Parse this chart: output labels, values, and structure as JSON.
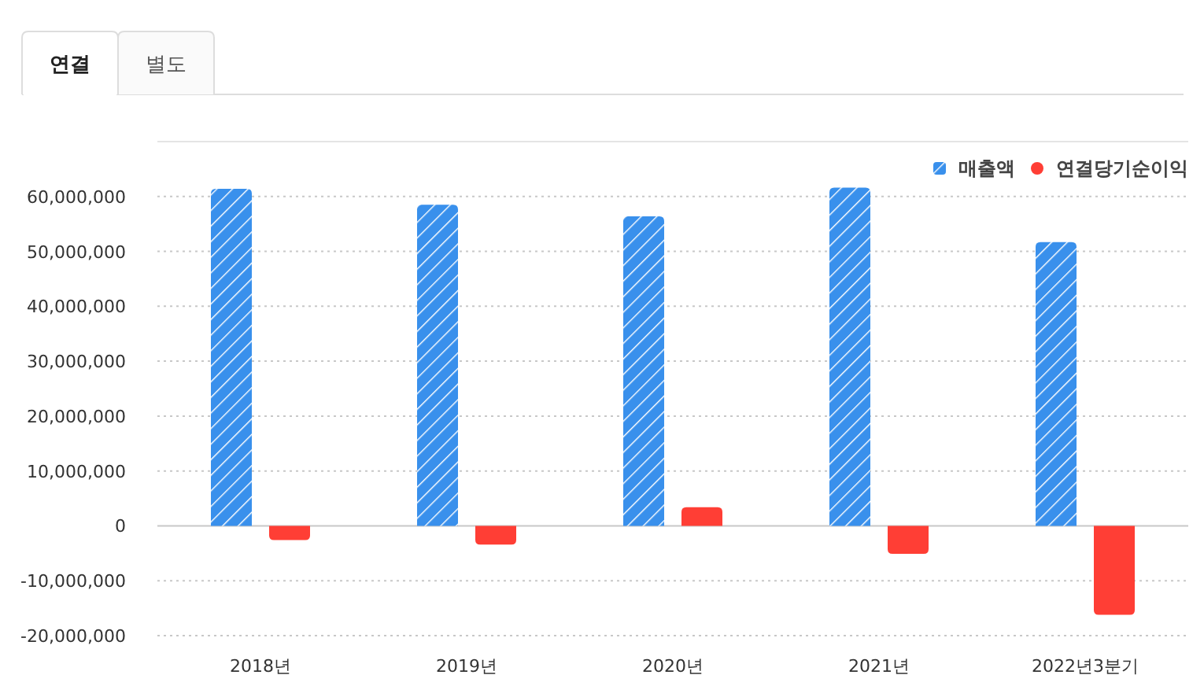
{
  "chart_data": {
    "type": "bar",
    "categories": [
      "2018년",
      "2019년",
      "2020년",
      "2021년",
      "2022년3분기"
    ],
    "series": [
      {
        "name": "매출액",
        "color": "#3990ec",
        "values": [
          61400000,
          58500000,
          56400000,
          61600000,
          51700000
        ]
      },
      {
        "name": "연결당기순이익",
        "color": "#ff3e35",
        "values": [
          -2600000,
          -3400000,
          3400000,
          -5100000,
          -16200000
        ]
      }
    ],
    "ylim": [
      -20000000,
      70000000
    ],
    "yticks": [
      {
        "value": -20000000,
        "label": "-20,000,000"
      },
      {
        "value": -10000000,
        "label": "-10,000,000"
      },
      0,
      {
        "value": 10000000,
        "label": "10,000,000"
      },
      {
        "value": 20000000,
        "label": "20,000,000"
      },
      {
        "value": 30000000,
        "label": "30,000,000"
      },
      {
        "value": 40000000,
        "label": "40,000,000"
      },
      {
        "value": 50000000,
        "label": "50,000,000"
      },
      {
        "value": 60000000,
        "label": "60,000,000"
      }
    ],
    "grid": "y",
    "legend": "top right",
    "annotations": [
      "연결",
      "별도"
    ]
  }
}
